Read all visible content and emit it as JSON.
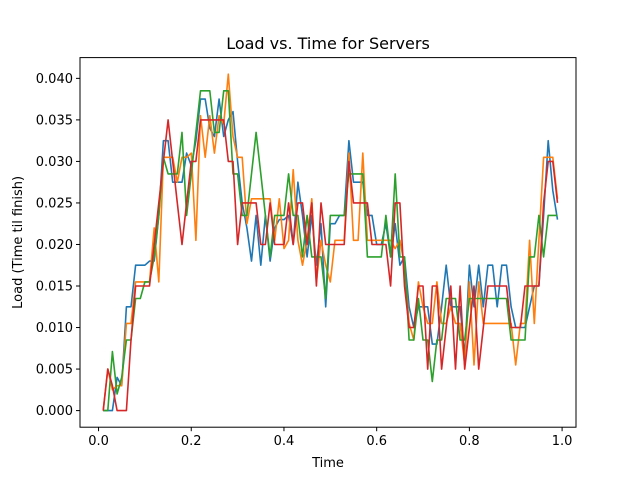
{
  "chart_data": {
    "type": "line",
    "title": "Load vs. Time for Servers",
    "xlabel": "Time",
    "ylabel": "Load (Time til finish)",
    "xlim": [
      -0.04,
      1.03
    ],
    "ylim": [
      -0.002,
      0.0425
    ],
    "grid": false,
    "legend": "none",
    "x_ticks": [
      0.0,
      0.2,
      0.4,
      0.6,
      0.8,
      1.0
    ],
    "x_tick_labels": [
      "0.0",
      "0.2",
      "0.4",
      "0.6",
      "0.8",
      "1.0"
    ],
    "y_ticks": [
      0.0,
      0.005,
      0.01,
      0.015,
      0.02,
      0.025,
      0.03,
      0.035,
      0.04
    ],
    "y_tick_labels": [
      "0.000",
      "0.005",
      "0.010",
      "0.015",
      "0.020",
      "0.025",
      "0.030",
      "0.035",
      "0.040"
    ],
    "series": [
      {
        "color": "#1f77b4",
        "x": [
          0.01,
          0.02,
          0.03,
          0.04,
          0.05,
          0.06,
          0.07,
          0.08,
          0.09,
          0.1,
          0.11,
          0.12,
          0.13,
          0.14,
          0.15,
          0.16,
          0.17,
          0.18,
          0.19,
          0.2,
          0.21,
          0.22,
          0.23,
          0.24,
          0.25,
          0.26,
          0.27,
          0.28,
          0.29,
          0.3,
          0.31,
          0.32,
          0.33,
          0.34,
          0.35,
          0.36,
          0.37,
          0.38,
          0.39,
          0.4,
          0.41,
          0.42,
          0.43,
          0.44,
          0.45,
          0.46,
          0.47,
          0.48,
          0.49,
          0.5,
          0.51,
          0.52,
          0.53,
          0.54,
          0.55,
          0.56,
          0.57,
          0.58,
          0.59,
          0.6,
          0.61,
          0.62,
          0.63,
          0.64,
          0.65,
          0.66,
          0.67,
          0.68,
          0.69,
          0.7,
          0.71,
          0.72,
          0.73,
          0.74,
          0.75,
          0.76,
          0.77,
          0.78,
          0.79,
          0.8,
          0.81,
          0.82,
          0.83,
          0.84,
          0.85,
          0.86,
          0.87,
          0.88,
          0.89,
          0.9,
          0.91,
          0.92,
          0.93,
          0.94,
          0.95,
          0.96,
          0.97,
          0.98,
          0.99
        ],
        "y": [
          0.0,
          0.0,
          0.0,
          0.004,
          0.003,
          0.0125,
          0.0125,
          0.0175,
          0.0175,
          0.0175,
          0.018,
          0.018,
          0.0235,
          0.0325,
          0.0325,
          0.0275,
          0.0275,
          0.0275,
          0.031,
          0.0295,
          0.0325,
          0.0375,
          0.0375,
          0.034,
          0.033,
          0.0375,
          0.033,
          0.035,
          0.036,
          0.03,
          0.025,
          0.022,
          0.018,
          0.0235,
          0.0175,
          0.0235,
          0.018,
          0.022,
          0.023,
          0.023,
          0.0235,
          0.02,
          0.0275,
          0.0235,
          0.0185,
          0.0235,
          0.0175,
          0.0225,
          0.0125,
          0.0225,
          0.0225,
          0.0235,
          0.0235,
          0.0325,
          0.0275,
          0.0275,
          0.0275,
          0.0235,
          0.0235,
          0.02,
          0.02,
          0.0225,
          0.0185,
          0.0225,
          0.0175,
          0.0185,
          0.0125,
          0.01,
          0.0125,
          0.0125,
          0.0125,
          0.008,
          0.008,
          0.0125,
          0.0175,
          0.0125,
          0.0125,
          0.0125,
          0.0065,
          0.0175,
          0.0125,
          0.0175,
          0.0125,
          0.0175,
          0.0175,
          0.0125,
          0.0175,
          0.0175,
          0.0125,
          0.01,
          0.01,
          0.01,
          0.0125,
          0.015,
          0.015,
          0.0235,
          0.0325,
          0.0265,
          0.023
        ]
      },
      {
        "color": "#ff7f0e",
        "x": [
          0.01,
          0.02,
          0.03,
          0.04,
          0.05,
          0.06,
          0.07,
          0.08,
          0.09,
          0.1,
          0.11,
          0.12,
          0.13,
          0.14,
          0.15,
          0.16,
          0.17,
          0.18,
          0.19,
          0.2,
          0.21,
          0.22,
          0.23,
          0.24,
          0.25,
          0.26,
          0.27,
          0.28,
          0.29,
          0.3,
          0.31,
          0.32,
          0.33,
          0.34,
          0.35,
          0.36,
          0.37,
          0.38,
          0.39,
          0.4,
          0.41,
          0.42,
          0.43,
          0.44,
          0.45,
          0.46,
          0.47,
          0.48,
          0.49,
          0.5,
          0.51,
          0.52,
          0.53,
          0.54,
          0.55,
          0.56,
          0.57,
          0.58,
          0.59,
          0.6,
          0.61,
          0.62,
          0.63,
          0.64,
          0.65,
          0.66,
          0.67,
          0.68,
          0.69,
          0.7,
          0.71,
          0.72,
          0.73,
          0.74,
          0.75,
          0.76,
          0.77,
          0.78,
          0.79,
          0.8,
          0.81,
          0.82,
          0.83,
          0.84,
          0.85,
          0.86,
          0.87,
          0.88,
          0.89,
          0.9,
          0.91,
          0.92,
          0.93,
          0.94,
          0.95,
          0.96,
          0.97,
          0.98,
          0.99
        ],
        "y": [
          0.0,
          0.005,
          0.0025,
          0.003,
          0.003,
          0.0105,
          0.0105,
          0.0155,
          0.0155,
          0.0155,
          0.0155,
          0.022,
          0.0155,
          0.0305,
          0.0305,
          0.0305,
          0.0275,
          0.0305,
          0.0305,
          0.031,
          0.0205,
          0.0355,
          0.0305,
          0.0355,
          0.031,
          0.0355,
          0.0345,
          0.0405,
          0.033,
          0.0305,
          0.0305,
          0.0225,
          0.0255,
          0.0255,
          0.0255,
          0.0255,
          0.0255,
          0.0205,
          0.0255,
          0.0195,
          0.0205,
          0.029,
          0.0205,
          0.0175,
          0.0205,
          0.0255,
          0.0155,
          0.0205,
          0.0175,
          0.0155,
          0.0205,
          0.0205,
          0.0205,
          0.031,
          0.0205,
          0.0205,
          0.031,
          0.0205,
          0.0205,
          0.0205,
          0.0205,
          0.0205,
          0.0205,
          0.0195,
          0.0205,
          0.0175,
          0.0105,
          0.0085,
          0.0155,
          0.0125,
          0.0105,
          0.0105,
          0.0155,
          0.0105,
          0.0105,
          0.0125,
          0.0105,
          0.0105,
          0.0055,
          0.0155,
          0.0055,
          0.0155,
          0.0105,
          0.0105,
          0.0105,
          0.0105,
          0.0105,
          0.0105,
          0.0105,
          0.0055,
          0.0105,
          0.0105,
          0.0205,
          0.0105,
          0.0205,
          0.0305,
          0.0305,
          0.0305,
          0.0255
        ]
      },
      {
        "color": "#2ca02c",
        "x": [
          0.01,
          0.02,
          0.03,
          0.04,
          0.05,
          0.06,
          0.07,
          0.08,
          0.09,
          0.1,
          0.11,
          0.12,
          0.13,
          0.14,
          0.15,
          0.16,
          0.17,
          0.18,
          0.19,
          0.2,
          0.21,
          0.22,
          0.23,
          0.24,
          0.25,
          0.26,
          0.27,
          0.28,
          0.29,
          0.3,
          0.31,
          0.32,
          0.33,
          0.34,
          0.35,
          0.36,
          0.37,
          0.38,
          0.39,
          0.4,
          0.41,
          0.42,
          0.43,
          0.44,
          0.45,
          0.46,
          0.47,
          0.48,
          0.49,
          0.5,
          0.51,
          0.52,
          0.53,
          0.54,
          0.55,
          0.56,
          0.57,
          0.58,
          0.59,
          0.6,
          0.61,
          0.62,
          0.63,
          0.64,
          0.65,
          0.66,
          0.67,
          0.68,
          0.69,
          0.7,
          0.71,
          0.72,
          0.73,
          0.74,
          0.75,
          0.76,
          0.77,
          0.78,
          0.79,
          0.8,
          0.81,
          0.82,
          0.83,
          0.84,
          0.85,
          0.86,
          0.87,
          0.88,
          0.89,
          0.9,
          0.91,
          0.92,
          0.93,
          0.94,
          0.95,
          0.96,
          0.97,
          0.98,
          0.99
        ],
        "y": [
          0.0,
          0.0,
          0.0071,
          0.002,
          0.004,
          0.0085,
          0.0085,
          0.0135,
          0.0135,
          0.0155,
          0.0155,
          0.0185,
          0.0235,
          0.0305,
          0.0285,
          0.0285,
          0.0285,
          0.0335,
          0.0235,
          0.0285,
          0.0335,
          0.0385,
          0.0385,
          0.0385,
          0.0335,
          0.0335,
          0.0385,
          0.0385,
          0.0285,
          0.0285,
          0.0235,
          0.0235,
          0.0285,
          0.0335,
          0.0285,
          0.0235,
          0.0185,
          0.0235,
          0.0235,
          0.0235,
          0.0285,
          0.0235,
          0.0235,
          0.0185,
          0.0235,
          0.0185,
          0.0185,
          0.0185,
          0.0135,
          0.0235,
          0.0235,
          0.0235,
          0.0235,
          0.0285,
          0.0285,
          0.0285,
          0.0285,
          0.0185,
          0.0185,
          0.0185,
          0.0185,
          0.0235,
          0.0185,
          0.0285,
          0.0185,
          0.0185,
          0.0085,
          0.0085,
          0.0135,
          0.0085,
          0.0085,
          0.0035,
          0.0085,
          0.0085,
          0.0135,
          0.0135,
          0.0135,
          0.0085,
          0.0085,
          0.0135,
          0.0135,
          0.0135,
          0.0135,
          0.0135,
          0.0135,
          0.0135,
          0.0135,
          0.0135,
          0.0085,
          0.0085,
          0.0085,
          0.0085,
          0.0185,
          0.0185,
          0.0235,
          0.0185,
          0.0235,
          0.0235,
          0.0235
        ]
      },
      {
        "color": "#d62728",
        "x": [
          0.01,
          0.02,
          0.03,
          0.04,
          0.05,
          0.06,
          0.07,
          0.08,
          0.09,
          0.1,
          0.11,
          0.12,
          0.13,
          0.14,
          0.15,
          0.16,
          0.17,
          0.18,
          0.19,
          0.2,
          0.21,
          0.22,
          0.23,
          0.24,
          0.25,
          0.26,
          0.27,
          0.28,
          0.29,
          0.3,
          0.31,
          0.32,
          0.33,
          0.34,
          0.35,
          0.36,
          0.37,
          0.38,
          0.39,
          0.4,
          0.41,
          0.42,
          0.43,
          0.44,
          0.45,
          0.46,
          0.47,
          0.48,
          0.49,
          0.5,
          0.51,
          0.52,
          0.53,
          0.54,
          0.55,
          0.56,
          0.57,
          0.58,
          0.59,
          0.6,
          0.61,
          0.62,
          0.63,
          0.64,
          0.65,
          0.66,
          0.67,
          0.68,
          0.69,
          0.7,
          0.71,
          0.72,
          0.73,
          0.74,
          0.75,
          0.76,
          0.77,
          0.78,
          0.79,
          0.8,
          0.81,
          0.82,
          0.83,
          0.84,
          0.85,
          0.86,
          0.87,
          0.88,
          0.89,
          0.9,
          0.91,
          0.92,
          0.93,
          0.94,
          0.95,
          0.96,
          0.97,
          0.98,
          0.99
        ],
        "y": [
          0.0,
          0.005,
          0.003,
          0.0,
          0.0,
          0.0,
          0.0085,
          0.015,
          0.015,
          0.015,
          0.015,
          0.02,
          0.025,
          0.03,
          0.035,
          0.03,
          0.025,
          0.02,
          0.025,
          0.03,
          0.03,
          0.035,
          0.035,
          0.035,
          0.035,
          0.035,
          0.035,
          0.03,
          0.03,
          0.02,
          0.025,
          0.025,
          0.025,
          0.025,
          0.02,
          0.02,
          0.025,
          0.02,
          0.02,
          0.02,
          0.025,
          0.02,
          0.025,
          0.025,
          0.02,
          0.025,
          0.015,
          0.025,
          0.02,
          0.02,
          0.02,
          0.02,
          0.02,
          0.03,
          0.025,
          0.025,
          0.025,
          0.025,
          0.02,
          0.02,
          0.02,
          0.02,
          0.015,
          0.025,
          0.025,
          0.015,
          0.01,
          0.01,
          0.015,
          0.015,
          0.005,
          0.015,
          0.015,
          0.005,
          0.01,
          0.015,
          0.005,
          0.015,
          0.005,
          0.01,
          0.015,
          0.005,
          0.01,
          0.015,
          0.015,
          0.015,
          0.015,
          0.015,
          0.01,
          0.01,
          0.01,
          0.015,
          0.015,
          0.015,
          0.015,
          0.025,
          0.03,
          0.03,
          0.025
        ]
      }
    ]
  }
}
